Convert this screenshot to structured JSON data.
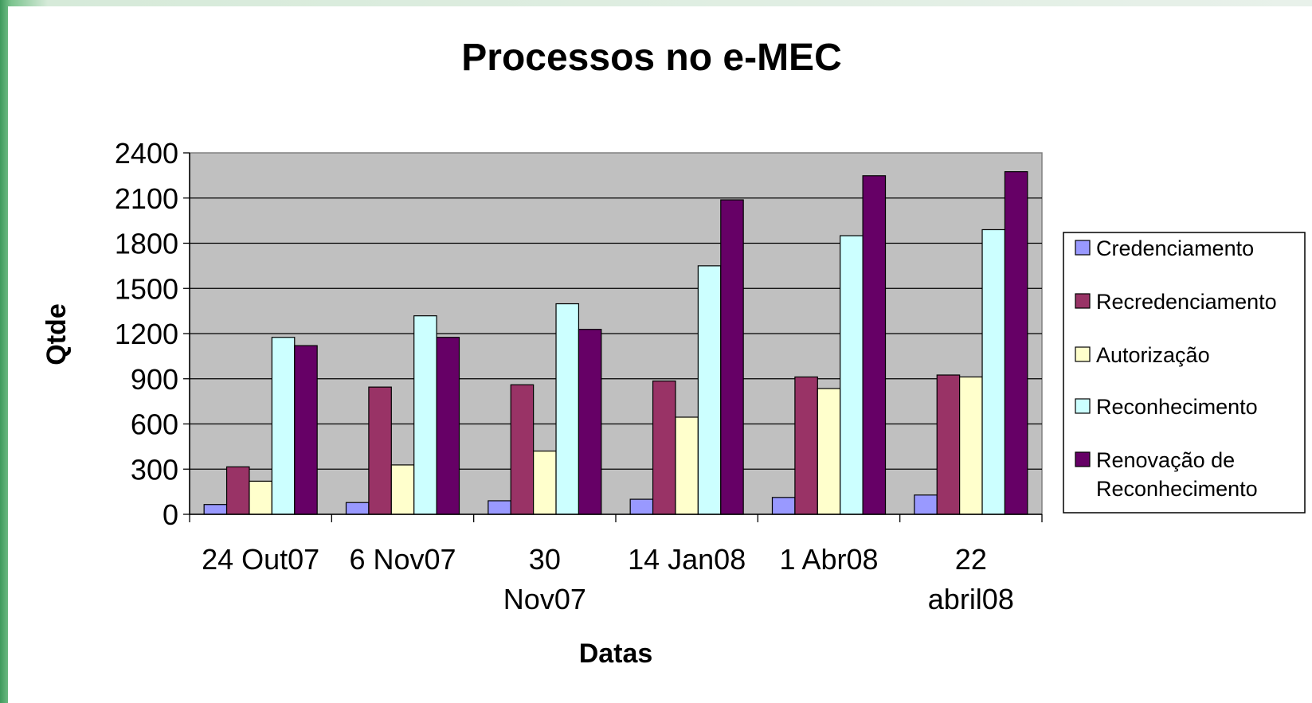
{
  "chart_data": {
    "type": "bar",
    "title": "Processos no e-MEC",
    "xlabel": "Datas",
    "ylabel": "Qtde",
    "ylim": [
      0,
      2400
    ],
    "yticks": [
      0,
      300,
      600,
      900,
      1200,
      1500,
      1800,
      2100,
      2400
    ],
    "grid": true,
    "legend_position": "right",
    "categories": [
      [
        "24 Out07"
      ],
      [
        "6 Nov07"
      ],
      [
        "30",
        "Nov07"
      ],
      [
        "14 Jan08"
      ],
      [
        "1 Abr08"
      ],
      [
        "22",
        "abril08"
      ]
    ],
    "series": [
      {
        "name": "Credenciamento",
        "color": "#9999ff",
        "values": [
          65,
          78,
          90,
          100,
          112,
          128
        ]
      },
      {
        "name": "Recredenciamento",
        "color": "#993366",
        "values": [
          315,
          845,
          860,
          885,
          912,
          925
        ]
      },
      {
        "name": "Autorização",
        "color": "#ffffcc",
        "values": [
          220,
          328,
          420,
          645,
          835,
          912
        ]
      },
      {
        "name": "Reconhecimento",
        "color": "#ccffff",
        "values": [
          1175,
          1318,
          1398,
          1650,
          1850,
          1890
        ]
      },
      {
        "name": "Renovação de Reconhecimento",
        "color": "#660066",
        "values": [
          1120,
          1175,
          1228,
          2088,
          2248,
          2275
        ]
      }
    ],
    "legend_lines": [
      [
        "Credenciamento"
      ],
      [
        "Recredenciamento"
      ],
      [
        "Autorização"
      ],
      [
        "Reconhecimento"
      ],
      [
        "Renovação de",
        "Reconhecimento"
      ]
    ],
    "plot_background": "#c0c0c0"
  }
}
